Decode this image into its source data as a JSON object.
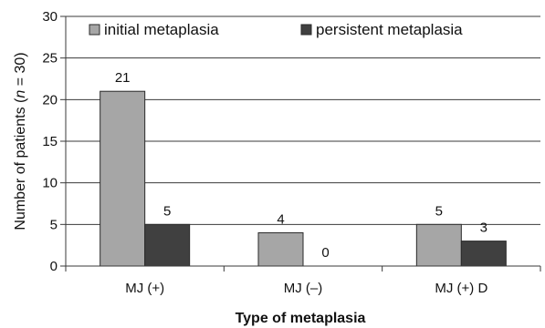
{
  "chart_data": {
    "type": "bar",
    "categories": [
      "MJ (+)",
      "MJ (–)",
      "MJ (+) D"
    ],
    "series": [
      {
        "name": "initial metaplasia",
        "values": [
          21,
          4,
          5
        ],
        "color": "#a6a6a6"
      },
      {
        "name": "persistent metaplasia",
        "values": [
          5,
          0,
          3
        ],
        "color": "#404040"
      }
    ],
    "xlabel": "Type of metaplasia",
    "ylabel": "Number of patients (n = 30)",
    "ylim": [
      0,
      30
    ],
    "yticks": [
      0,
      5,
      10,
      15,
      20,
      25,
      30
    ],
    "grid": true,
    "legend": "top"
  }
}
